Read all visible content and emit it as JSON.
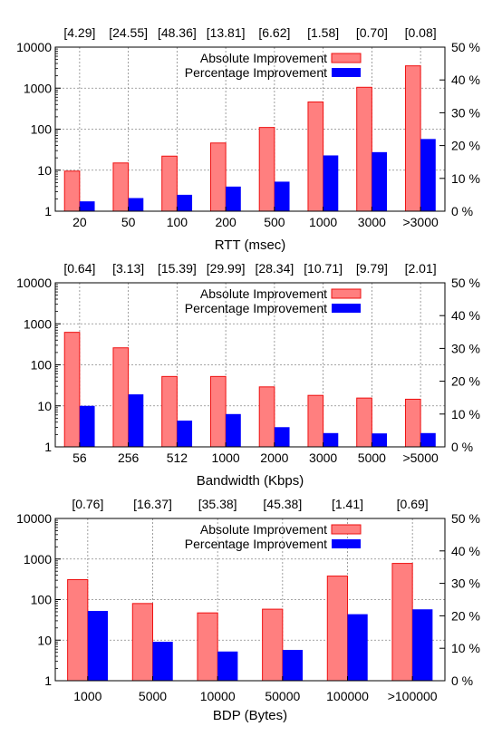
{
  "legend": {
    "absolute": "Absolute Improvement",
    "percentage": "Percentage Improvement"
  },
  "colors": {
    "absolute_fill": "#ff7f7f",
    "absolute_stroke": "#ee1111",
    "percentage_fill": "#0000ff"
  },
  "chart_data": [
    {
      "type": "bar",
      "xlabel": "RTT (msec)",
      "categories": [
        "20",
        "50",
        "100",
        "200",
        "500",
        "1000",
        "3000",
        ">3000"
      ],
      "top_labels": [
        "[4.29]",
        "[24.55]",
        "[48.36]",
        "[13.81]",
        "[6.62]",
        "[1.58]",
        "[0.70]",
        "[0.08]"
      ],
      "y_left": {
        "scale": "log",
        "range": [
          1,
          10000
        ],
        "ticks": [
          "1",
          "10",
          "100",
          "1000",
          "10000"
        ]
      },
      "y_right": {
        "scale": "linear",
        "range": [
          0,
          50
        ],
        "ticks": [
          "0 %",
          "10 %",
          "20 %",
          "30 %",
          "40 %",
          "50 %"
        ]
      },
      "grid": true,
      "legend_position": "top-right",
      "series": [
        {
          "name": "Absolute Improvement",
          "axis": "left",
          "values": [
            9.5,
            15,
            22,
            46,
            110,
            460,
            1050,
            3500
          ]
        },
        {
          "name": "Percentage Improvement",
          "axis": "right",
          "values": [
            3,
            4,
            5,
            7.5,
            9,
            17,
            18,
            22
          ]
        }
      ]
    },
    {
      "type": "bar",
      "xlabel": "Bandwidth (Kbps)",
      "categories": [
        "56",
        "256",
        "512",
        "1000",
        "2000",
        "3000",
        "5000",
        ">5000"
      ],
      "top_labels": [
        "[0.64]",
        "[3.13]",
        "[15.39]",
        "[29.99]",
        "[28.34]",
        "[10.71]",
        "[9.79]",
        "[2.01]"
      ],
      "y_left": {
        "scale": "log",
        "range": [
          1,
          10000
        ],
        "ticks": [
          "1",
          "10",
          "100",
          "1000",
          "10000"
        ]
      },
      "y_right": {
        "scale": "linear",
        "range": [
          0,
          50
        ],
        "ticks": [
          "0 %",
          "10 %",
          "20 %",
          "30 %",
          "40 %",
          "50 %"
        ]
      },
      "grid": true,
      "legend_position": "top-right",
      "series": [
        {
          "name": "Absolute Improvement",
          "axis": "left",
          "values": [
            620,
            260,
            52,
            52,
            29,
            18,
            15.5,
            14.5
          ]
        },
        {
          "name": "Percentage Improvement",
          "axis": "right",
          "values": [
            12.5,
            16,
            8,
            10,
            6,
            4.2,
            4.1,
            4.2
          ]
        }
      ]
    },
    {
      "type": "bar",
      "xlabel": "BDP (Bytes)",
      "categories": [
        "1000",
        "5000",
        "10000",
        "50000",
        "100000",
        ">100000"
      ],
      "top_labels": [
        "[0.76]",
        "[16.37]",
        "[35.38]",
        "[45.38]",
        "[1.41]",
        "[0.69]"
      ],
      "y_left": {
        "scale": "log",
        "range": [
          1,
          10000
        ],
        "ticks": [
          "1",
          "10",
          "100",
          "1000",
          "10000"
        ]
      },
      "y_right": {
        "scale": "linear",
        "range": [
          0,
          50
        ],
        "ticks": [
          "0 %",
          "10 %",
          "20 %",
          "30 %",
          "40 %",
          "50 %"
        ]
      },
      "grid": true,
      "legend_position": "top-right",
      "series": [
        {
          "name": "Absolute Improvement",
          "axis": "left",
          "values": [
            310,
            80,
            47,
            58,
            380,
            780
          ]
        },
        {
          "name": "Percentage Improvement",
          "axis": "right",
          "values": [
            21.5,
            12,
            9,
            9.5,
            20.5,
            22
          ]
        }
      ]
    }
  ]
}
